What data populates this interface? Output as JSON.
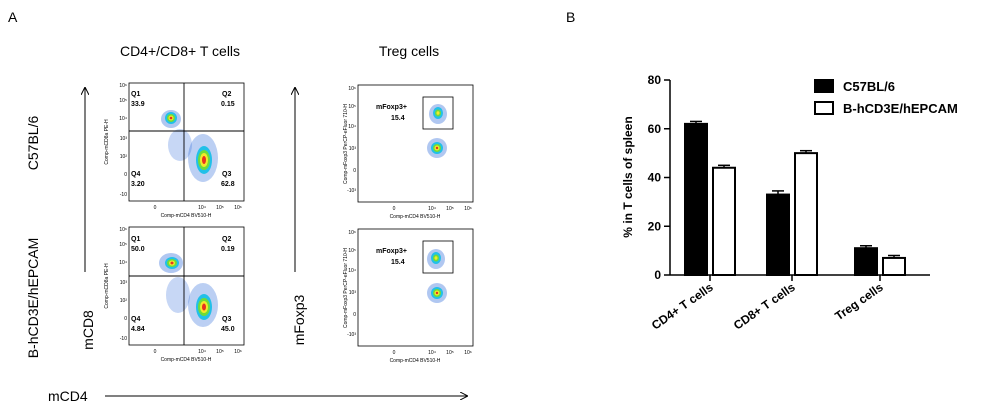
{
  "panel_a": {
    "label": "A",
    "col_titles": [
      "CD4+/CD8+ T cells",
      "Treg cells"
    ],
    "row_labels": [
      "C57BL/6",
      "B-hCD3E/hEPCAM"
    ],
    "axis_mcd8": "mCD8",
    "axis_mfoxp3": "mFoxp3",
    "axis_mcd4": "mCD4",
    "cd_plot_ylabel": "Comp-mCD8a PE-H",
    "treg_plot_ylabel": "Comp-mFoxp3 PerCP-eFluor 710-H",
    "plot_xlabel": "Comp-mCD4 BV510-H",
    "x_ticks": [
      "0",
      "10⁴",
      "10⁵",
      "10⁶"
    ],
    "y_ticks": [
      "10⁶",
      "10⁵",
      "10⁴",
      "10³",
      "0",
      "-10³"
    ],
    "y_ticks_cd": [
      "10⁶",
      "10⁵",
      "10⁴",
      "10³",
      "10²",
      "0",
      "-10"
    ],
    "quadrant_plots": [
      {
        "q1_label": "Q1",
        "q1_value": "33.9",
        "q2_label": "Q2",
        "q2_value": "0.15",
        "q3_label": "Q3",
        "q3_value": "62.8",
        "q4_label": "Q4",
        "q4_value": "3.20"
      },
      {
        "q1_label": "Q1",
        "q1_value": "50.0",
        "q2_label": "Q2",
        "q2_value": "0.19",
        "q3_label": "Q3",
        "q3_value": "45.0",
        "q4_label": "Q4",
        "q4_value": "4.84"
      }
    ],
    "treg_plots": [
      {
        "gate_label": "mFoxp3+",
        "gate_value": "15.4"
      },
      {
        "gate_label": "mFoxp3+",
        "gate_value": "15.4"
      }
    ]
  },
  "panel_b": {
    "label": "B"
  },
  "chart_data": {
    "type": "bar",
    "categories": [
      "CD4+ T cells",
      "CD8+ T cells",
      "Treg cells"
    ],
    "series": [
      {
        "name": "C57BL/6",
        "values": [
          62,
          33,
          11
        ],
        "errors": [
          1,
          1.5,
          1
        ],
        "color": "#000000"
      },
      {
        "name": "B-hCD3E/hEPCAM",
        "values": [
          44,
          50,
          7
        ],
        "errors": [
          1,
          1,
          1
        ],
        "color": "#ffffff"
      }
    ],
    "title": "",
    "xlabel": "",
    "ylabel": "% in T cells of spleen",
    "ylim": [
      0,
      80
    ],
    "yticks": [
      0,
      20,
      40,
      60,
      80
    ],
    "legend_position": "top-right",
    "grid": false
  }
}
